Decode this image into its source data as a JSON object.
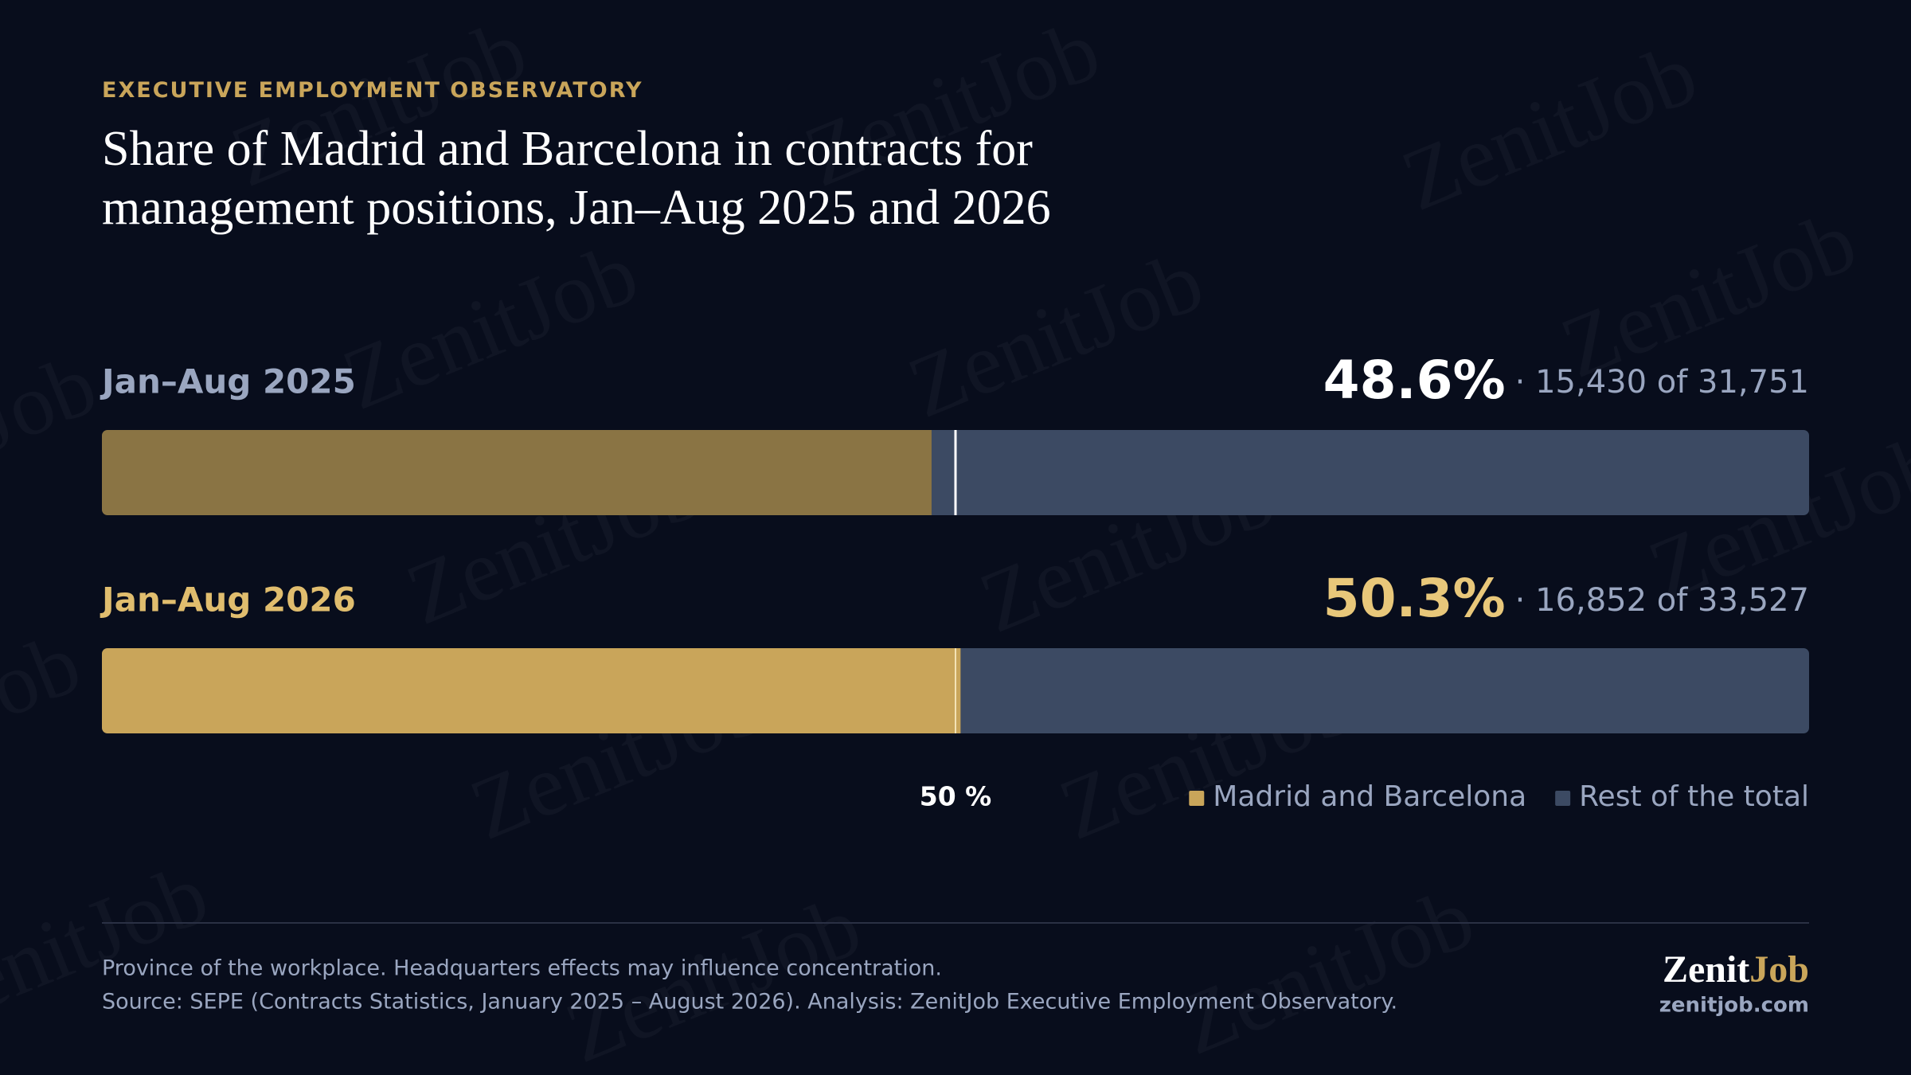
{
  "kicker": "EXECUTIVE EMPLOYMENT OBSERVATORY",
  "watermark": "ZenitJob",
  "chart_data": {
    "type": "stacked-bar",
    "title": "Share of Madrid and Barcelona in contracts for management positions, Jan–Aug 2025 and 2026",
    "categories": [
      "Jan–Aug 2025",
      "Jan–Aug 2026"
    ],
    "category_colors": [
      "#9aa6c0",
      "#e0bd6e"
    ],
    "series": [
      {
        "name": "Madrid and Barcelona",
        "color": "#c9a55a",
        "bar_colors": [
          "#8a7444",
          "#c9a55a"
        ],
        "values": [
          48.6,
          50.3
        ],
        "value_labels": [
          "48.6%",
          "50.3%"
        ],
        "value_label_colors": [
          "#ffffff",
          "#e8c77a"
        ]
      },
      {
        "name": "Rest of the total",
        "color": "#3c4a63",
        "values": [
          51.4,
          49.7
        ]
      }
    ],
    "detail_labels": [
      "· 15,430 of 31,751",
      "· 16,852 of 33,527"
    ],
    "xlim": [
      0,
      100
    ],
    "xticks": [
      {
        "value": 50,
        "label": "50 %"
      }
    ]
  },
  "footnotes": [
    "Province of the workplace. Headquarters effects may influence concentration.",
    "Source: SEPE (Contracts Statistics, January 2025 – August 2026). Analysis: ZenitJob Executive Employment Observatory."
  ],
  "brand": {
    "first": "Zenit",
    "second": "Job",
    "url": "zenitjob.com"
  }
}
